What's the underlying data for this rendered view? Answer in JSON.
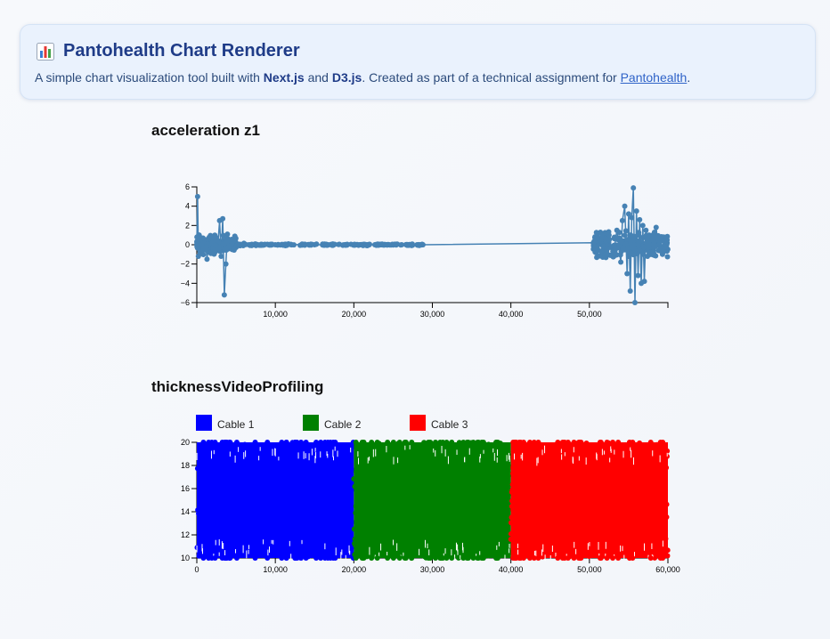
{
  "header": {
    "title": "Pantohealth Chart Renderer",
    "desc_prefix": "A simple chart visualization tool built with ",
    "tech1": "Next.js",
    "desc_and": " and ",
    "tech2": "D3.js",
    "desc_middle": ". Created as part of a technical assignment for ",
    "link_text": "Pantohealth",
    "desc_suffix": "."
  },
  "chart_data": [
    {
      "type": "line",
      "title": "acceleration z1",
      "xlim": [
        0,
        60000
      ],
      "ylim": [
        -6,
        6
      ],
      "x_ticks": [
        10000,
        20000,
        30000,
        40000,
        50000
      ],
      "x_tick_labels": [
        "10,000",
        "20,000",
        "30,000",
        "40,000",
        "50,000"
      ],
      "y_ticks": [
        6,
        4,
        2,
        0,
        -2,
        -4,
        -6
      ],
      "y_tick_labels": [
        "6",
        "4",
        "2",
        "0",
        "−2",
        "−4",
        "−6"
      ],
      "color": "#4682b4",
      "series": [
        {
          "x": [
            0,
            100,
            200,
            300,
            500,
            700,
            900,
            1100,
            1300,
            1500,
            1700,
            1900,
            2100,
            2300,
            2500,
            2700,
            2900,
            3100,
            3300,
            3500,
            3700,
            3900,
            4100,
            4300,
            4500,
            5000,
            5500,
            6000,
            7000,
            8000,
            9000,
            10000,
            12000,
            15000,
            20000,
            25000,
            28800,
            50500,
            51000,
            51500,
            52000,
            52500,
            53000,
            53500,
            54000,
            54200,
            54500,
            54800,
            55000,
            55200,
            55400,
            55600,
            55800,
            56000,
            56200,
            56400,
            56600,
            56800,
            57000,
            57200,
            57400,
            57600,
            57800,
            58000,
            58200,
            58500,
            58800,
            59000,
            59300,
            59600,
            59900
          ],
          "y": [
            0.3,
            5,
            -1.2,
            1.0,
            -0.8,
            0.6,
            -0.5,
            0.4,
            -1.5,
            0.5,
            -0.4,
            0.3,
            -0.6,
            0.4,
            -0.3,
            0.2,
            2.5,
            -1.2,
            2.7,
            -5.2,
            -2.0,
            1.1,
            -0.4,
            0.3,
            -0.2,
            0.2,
            -0.1,
            0.15,
            0.05,
            -0.05,
            0.05,
            0,
            0.03,
            0,
            0,
            0,
            0,
            0.2,
            -0.3,
            0.6,
            -0.8,
            1.0,
            -1.2,
            1.5,
            -1.8,
            2.5,
            4.0,
            -3.0,
            3.2,
            -4.8,
            2.8,
            5.9,
            -6.0,
            3.5,
            -3.2,
            2.6,
            -4.0,
            2.0,
            -3.8,
            1.5,
            -1.2,
            1.0,
            -1.0,
            0.8,
            -0.9,
            1.8,
            -0.6,
            0.5,
            -0.4,
            0.3,
            0.2
          ]
        }
      ]
    },
    {
      "type": "scatter",
      "title": "thicknessVideoProfiling",
      "xlim": [
        0,
        60000
      ],
      "ylim": [
        10,
        20
      ],
      "x_ticks": [
        0,
        10000,
        20000,
        30000,
        40000,
        50000,
        60000
      ],
      "x_tick_labels": [
        "0",
        "10,000",
        "20,000",
        "30,000",
        "40,000",
        "50,000",
        "60,000"
      ],
      "y_ticks": [
        20,
        18,
        16,
        14,
        12,
        10
      ],
      "y_tick_labels": [
        "20",
        "18",
        "16",
        "14",
        "12",
        "10"
      ],
      "legend_position": "top-left",
      "series": [
        {
          "name": "Cable 1",
          "color": "#0000ff",
          "x_range": [
            0,
            20000
          ],
          "y_range": [
            10,
            20
          ]
        },
        {
          "name": "Cable 2",
          "color": "#008000",
          "x_range": [
            20000,
            40000
          ],
          "y_range": [
            10,
            20
          ]
        },
        {
          "name": "Cable 3",
          "color": "#ff0000",
          "x_range": [
            40000,
            60000
          ],
          "y_range": [
            10,
            20
          ]
        }
      ]
    }
  ]
}
